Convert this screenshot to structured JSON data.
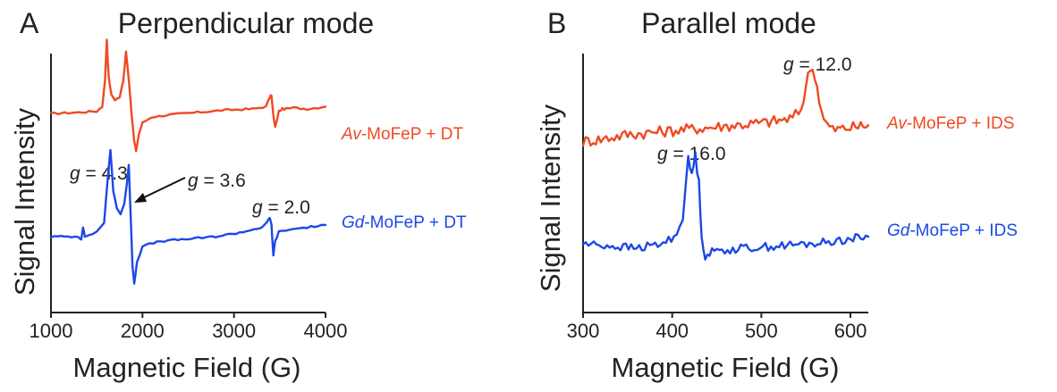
{
  "chart_data": [
    {
      "type": "line",
      "panel": "A",
      "title": "Perpendicular mode",
      "xlabel": "Magnetic Field (G)",
      "ylabel": "Signal Intensity",
      "xlim": [
        1000,
        4000
      ],
      "xticks": [
        "1000",
        "2000",
        "3000",
        "4000"
      ],
      "yticks_shown": false,
      "series": [
        {
          "name_prefix": "Av",
          "name_rest": "-MoFeP + DT",
          "color": "#f04a23",
          "baseline": 0.78,
          "x": [
            1000,
            1300,
            1500,
            1560,
            1590,
            1610,
            1630,
            1660,
            1700,
            1750,
            1790,
            1820,
            1850,
            1880,
            1910,
            1930,
            1960,
            2000,
            2100,
            2300,
            2600,
            2900,
            3200,
            3350,
            3390,
            3410,
            3430,
            3450,
            3490,
            3530,
            3570,
            3650,
            3800,
            4000
          ],
          "y": [
            0.78,
            0.785,
            0.79,
            0.81,
            0.92,
            1.1,
            0.94,
            0.86,
            0.84,
            0.85,
            0.92,
            1.05,
            0.93,
            0.78,
            0.66,
            0.62,
            0.69,
            0.74,
            0.765,
            0.775,
            0.785,
            0.795,
            0.8,
            0.81,
            0.85,
            0.86,
            0.77,
            0.72,
            0.79,
            0.8,
            0.8,
            0.805,
            0.8,
            0.81
          ]
        },
        {
          "name_prefix": "Gd",
          "name_rest": "-MoFeP + DT",
          "color": "#1c48e8",
          "baseline": 0.25,
          "x": [
            1000,
            1300,
            1330,
            1350,
            1370,
            1500,
            1580,
            1620,
            1650,
            1680,
            1720,
            1760,
            1800,
            1830,
            1850,
            1870,
            1890,
            1910,
            1940,
            2000,
            2200,
            2500,
            2800,
            3100,
            3300,
            3360,
            3390,
            3410,
            3430,
            3450,
            3490,
            3600,
            3800,
            4000
          ],
          "y": [
            0.25,
            0.25,
            0.24,
            0.29,
            0.25,
            0.27,
            0.31,
            0.5,
            0.62,
            0.45,
            0.37,
            0.35,
            0.39,
            0.48,
            0.56,
            0.35,
            0.13,
            0.05,
            0.14,
            0.21,
            0.23,
            0.24,
            0.25,
            0.27,
            0.29,
            0.31,
            0.33,
            0.3,
            0.17,
            0.23,
            0.27,
            0.28,
            0.29,
            0.3
          ]
        }
      ],
      "annotations": [
        {
          "sym": "g",
          "rest": " = 4.3"
        },
        {
          "sym": "g",
          "rest": " = 3.6"
        },
        {
          "sym": "g",
          "rest": " = 2.0"
        }
      ]
    },
    {
      "type": "line",
      "panel": "B",
      "title": "Parallel mode",
      "xlabel": "Magnetic Field (G)",
      "ylabel": "Signal Intensity",
      "xlim": [
        300,
        620
      ],
      "xticks": [
        "300",
        "400",
        "500",
        "600"
      ],
      "yticks_shown": false,
      "series": [
        {
          "name_prefix": "Av",
          "name_rest": "-MoFeP + IDS",
          "color": "#f04a23",
          "baseline": 0.7,
          "noise": 0.025,
          "x": [
            300,
            320,
            350,
            380,
            410,
            440,
            470,
            500,
            520,
            535,
            545,
            550,
            555,
            560,
            565,
            570,
            580,
            600,
            620
          ],
          "y": [
            0.66,
            0.67,
            0.69,
            0.7,
            0.71,
            0.72,
            0.73,
            0.74,
            0.75,
            0.76,
            0.8,
            0.9,
            0.98,
            0.95,
            0.84,
            0.75,
            0.71,
            0.72,
            0.73
          ]
        },
        {
          "name_prefix": "Gd",
          "name_rest": "-MoFeP + IDS",
          "color": "#1c48e8",
          "baseline": 0.22,
          "noise": 0.018,
          "x": [
            300,
            330,
            360,
            390,
            405,
            412,
            418,
            422,
            426,
            430,
            433,
            437,
            442,
            450,
            480,
            520,
            560,
            600,
            620
          ],
          "y": [
            0.22,
            0.21,
            0.2,
            0.22,
            0.26,
            0.34,
            0.58,
            0.52,
            0.6,
            0.48,
            0.26,
            0.16,
            0.18,
            0.19,
            0.2,
            0.21,
            0.22,
            0.24,
            0.25
          ]
        }
      ],
      "annotations": [
        {
          "sym": "g",
          "rest": " = 12.0"
        },
        {
          "sym": "g",
          "rest": " = 16.0"
        }
      ]
    }
  ]
}
